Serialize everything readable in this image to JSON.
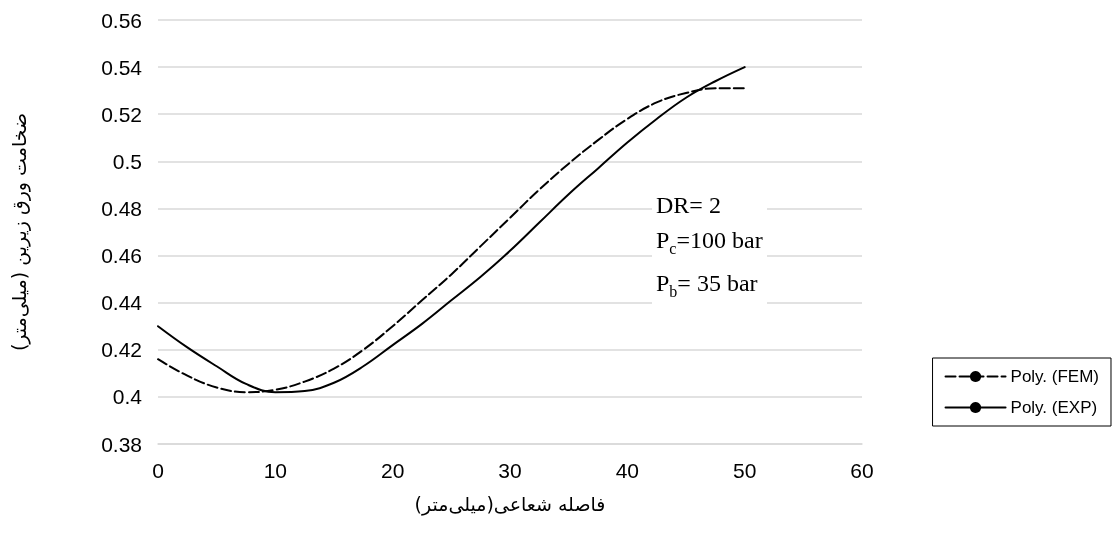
{
  "chart_data": {
    "type": "line",
    "xlabel": "فاصله شعاعی(میلی‌متر)",
    "ylabel": "ضخامت ورق زیرین (میلی‌متر)",
    "x": [
      0,
      2.5,
      5,
      7.5,
      10,
      12.5,
      15,
      17.5,
      20,
      22.5,
      25,
      27.5,
      30,
      32.5,
      35,
      37.5,
      40,
      42.5,
      45,
      47.5,
      50
    ],
    "series": [
      {
        "name": "Poly. (FEM)",
        "color": "#000000",
        "line_style": "dashed",
        "values": [
          0.416,
          0.409,
          0.404,
          0.402,
          0.403,
          0.4065,
          0.412,
          0.42,
          0.43,
          0.441,
          0.452,
          0.464,
          0.476,
          0.488,
          0.499,
          0.509,
          0.518,
          0.525,
          0.529,
          0.531,
          0.531
        ]
      },
      {
        "name": "Poly. (EXP)",
        "color": "#000000",
        "line_style": "solid",
        "values": [
          0.43,
          0.421,
          0.413,
          0.4055,
          0.402,
          0.4025,
          0.406,
          0.413,
          0.422,
          0.431,
          0.441,
          0.451,
          0.462,
          0.474,
          0.486,
          0.497,
          0.508,
          0.518,
          0.527,
          0.534,
          0.54
        ]
      }
    ],
    "xlim": [
      0,
      60
    ],
    "xticks": [
      0,
      10,
      20,
      30,
      40,
      50,
      60
    ],
    "ylim": [
      0.38,
      0.56
    ],
    "yticks": [
      0.38,
      0.4,
      0.42,
      0.44,
      0.46,
      0.48,
      0.5,
      0.52,
      0.54,
      0.56
    ],
    "grid": "y",
    "legend": "right",
    "marker": "none",
    "annotations": [
      "DR= 2",
      "P$_{c}$=100 bar",
      "P$_{b}$= 35 bar"
    ]
  }
}
